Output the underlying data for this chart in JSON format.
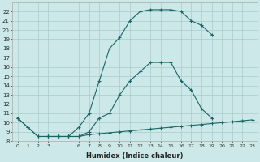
{
  "xlabel": "Humidex (Indice chaleur)",
  "bg_color": "#cce8e8",
  "grid_color": "#aacccc",
  "line_color": "#1a6666",
  "line1_x": [
    0,
    1,
    2,
    3,
    4,
    5,
    6,
    7,
    8,
    9,
    10,
    11,
    12,
    13,
    14,
    15,
    16,
    17,
    18,
    19,
    20,
    21,
    22,
    23
  ],
  "line1_y": [
    10.5,
    9.5,
    8.5,
    8.5,
    8.5,
    8.5,
    8.5,
    8.7,
    8.8,
    8.9,
    9.0,
    9.1,
    9.2,
    9.3,
    9.4,
    9.5,
    9.6,
    9.7,
    9.8,
    9.9,
    10.0,
    10.1,
    10.2,
    10.3
  ],
  "line2_x": [
    0,
    1,
    2,
    3,
    4,
    5,
    6,
    7,
    8,
    9,
    10,
    11,
    12,
    13,
    14,
    15,
    16,
    17,
    18,
    19
  ],
  "line2_y": [
    10.5,
    9.5,
    8.5,
    8.5,
    8.5,
    8.5,
    9.5,
    11.0,
    14.5,
    18.0,
    19.2,
    21.0,
    22.0,
    22.2,
    22.2,
    22.2,
    22.0,
    21.0,
    20.5,
    19.5
  ],
  "line3_x": [
    3,
    4,
    5,
    6,
    7,
    8,
    9,
    10,
    11,
    12,
    13,
    14,
    15,
    16,
    17,
    18,
    19,
    20,
    21,
    22,
    23
  ],
  "line3_y": [
    8.5,
    8.5,
    8.5,
    8.5,
    9.0,
    10.5,
    11.0,
    13.0,
    14.5,
    15.5,
    16.5,
    16.5,
    16.5,
    14.5,
    13.5,
    11.5,
    10.5,
    null,
    null,
    null,
    null
  ],
  "xlim": [
    -0.5,
    23.5
  ],
  "ylim": [
    8,
    23
  ],
  "xticks": [
    0,
    1,
    2,
    3,
    6,
    7,
    8,
    9,
    10,
    11,
    12,
    13,
    14,
    15,
    16,
    17,
    18,
    19,
    20,
    21,
    22,
    23
  ],
  "yticks": [
    8,
    9,
    10,
    11,
    12,
    13,
    14,
    15,
    16,
    17,
    18,
    19,
    20,
    21,
    22
  ]
}
